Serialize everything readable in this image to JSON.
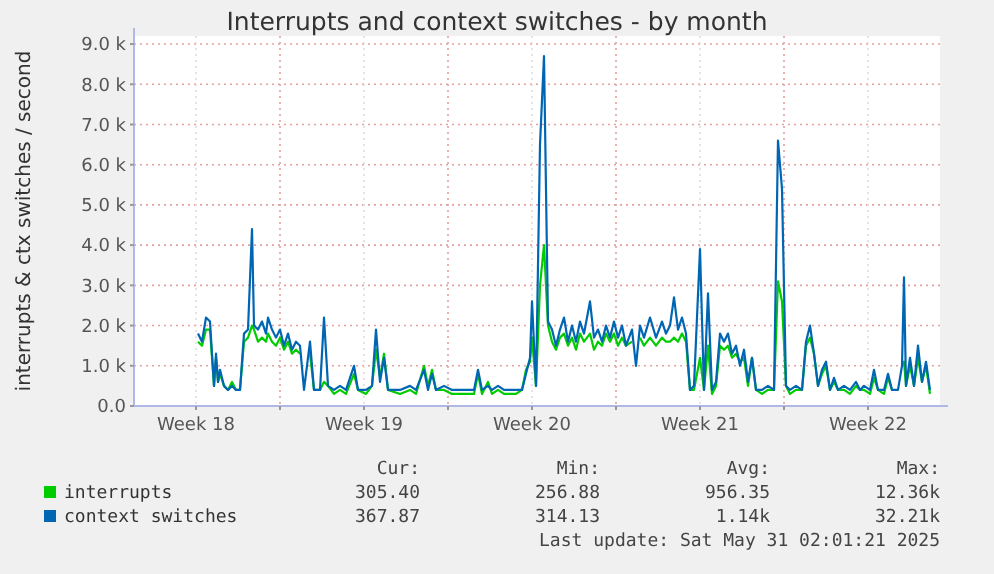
{
  "chart_data": {
    "type": "line",
    "title": "Interrupts and context switches - by month",
    "ylabel": "interrupts & ctx switches / second",
    "x": [
      "2025-04-30T14:00",
      "2025-04-30T18:00",
      "2025-04-30T22:00",
      "2025-05-01T02:00",
      "2025-05-01T06:00",
      "2025-05-01T08:00",
      "2025-05-01T10:00",
      "2025-05-01T12:00",
      "2025-05-01T16:00",
      "2025-05-01T20:00",
      "2025-05-02T00:00",
      "2025-05-02T04:00",
      "2025-05-02T08:00",
      "2025-05-02T12:00",
      "2025-05-02T16:00",
      "2025-05-02T20:00",
      "2025-05-02T22:00",
      "2025-05-03T02:00",
      "2025-05-03T06:00",
      "2025-05-03T10:00",
      "2025-05-03T12:00",
      "2025-05-03T16:00",
      "2025-05-03T20:00",
      "2025-05-04T00:00",
      "2025-05-04T04:00",
      "2025-05-04T08:00",
      "2025-05-04T12:00",
      "2025-05-04T16:00",
      "2025-05-04T20:00",
      "2025-05-05T00:00",
      "2025-05-05T06:00",
      "2025-05-05T10:00",
      "2025-05-05T16:00",
      "2025-05-05T20:00",
      "2025-05-06T00:00",
      "2025-05-06T06:00",
      "2025-05-06T12:00",
      "2025-05-06T18:00",
      "2025-05-07T02:00",
      "2025-05-07T06:00",
      "2025-05-07T14:00",
      "2025-05-07T20:00",
      "2025-05-08T00:00",
      "2025-05-08T04:00",
      "2025-05-08T08:00",
      "2025-05-08T12:00",
      "2025-05-09T00:00",
      "2025-05-09T10:00",
      "2025-05-09T16:00",
      "2025-05-10T00:00",
      "2025-05-10T04:00",
      "2025-05-10T08:00",
      "2025-05-10T12:00",
      "2025-05-10T20:00",
      "2025-05-11T04:00",
      "2025-05-11T16:00",
      "2025-05-12T02:00",
      "2025-05-12T06:00",
      "2025-05-12T10:00",
      "2025-05-12T16:00",
      "2025-05-12T20:00",
      "2025-05-13T02:00",
      "2025-05-13T08:00",
      "2025-05-13T20:00",
      "2025-05-14T02:00",
      "2025-05-14T06:00",
      "2025-05-14T10:00",
      "2025-05-14T12:00",
      "2025-05-14T16:00",
      "2025-05-14T20:00",
      "2025-05-15T00:00",
      "2025-05-15T04:00",
      "2025-05-15T08:00",
      "2025-05-15T12:00",
      "2025-05-15T16:00",
      "2025-05-15T20:00",
      "2025-05-16T00:00",
      "2025-05-16T04:00",
      "2025-05-16T08:00",
      "2025-05-16T12:00",
      "2025-05-16T16:00",
      "2025-05-16T22:00",
      "2025-05-17T02:00",
      "2025-05-17T06:00",
      "2025-05-17T10:00",
      "2025-05-17T14:00",
      "2025-05-17T18:00",
      "2025-05-17T22:00",
      "2025-05-18T02:00",
      "2025-05-18T06:00",
      "2025-05-18T10:00",
      "2025-05-18T16:00",
      "2025-05-18T20:00",
      "2025-05-19T00:00",
      "2025-05-19T04:00",
      "2025-05-19T10:00",
      "2025-05-19T16:00",
      "2025-05-19T22:00",
      "2025-05-20T02:00",
      "2025-05-20T06:00",
      "2025-05-20T10:00",
      "2025-05-20T14:00",
      "2025-05-20T18:00",
      "2025-05-20T22:00",
      "2025-05-21T02:00",
      "2025-05-21T06:00",
      "2025-05-21T12:00",
      "2025-05-21T16:00",
      "2025-05-21T20:00",
      "2025-05-22T00:00",
      "2025-05-22T04:00",
      "2025-05-22T08:00",
      "2025-05-22T12:00",
      "2025-05-22T16:00",
      "2025-05-22T20:00",
      "2025-05-23T00:00",
      "2025-05-23T04:00",
      "2025-05-23T08:00",
      "2025-05-23T12:00",
      "2025-05-23T16:00",
      "2025-05-23T20:00",
      "2025-05-24T02:00",
      "2025-05-24T08:00",
      "2025-05-24T14:00",
      "2025-05-24T18:00",
      "2025-05-24T22:00",
      "2025-05-25T02:00",
      "2025-05-25T06:00",
      "2025-05-25T12:00",
      "2025-05-25T18:00",
      "2025-05-25T22:00",
      "2025-05-26T02:00",
      "2025-05-26T06:00",
      "2025-05-26T10:00",
      "2025-05-26T14:00",
      "2025-05-26T18:00",
      "2025-05-26T22:00",
      "2025-05-27T02:00",
      "2025-05-27T06:00",
      "2025-05-27T12:00",
      "2025-05-27T18:00",
      "2025-05-28T00:00",
      "2025-05-28T04:00",
      "2025-05-28T08:00",
      "2025-05-28T14:00",
      "2025-05-28T18:00",
      "2025-05-28T22:00",
      "2025-05-29T04:00",
      "2025-05-29T08:00",
      "2025-05-29T12:00",
      "2025-05-29T18:00",
      "2025-05-29T22:00",
      "2025-05-30T00:00",
      "2025-05-30T02:00",
      "2025-05-30T06:00",
      "2025-05-30T10:00",
      "2025-05-30T14:00",
      "2025-05-30T18:00",
      "2025-05-30T22:00",
      "2025-05-31T02:00"
    ],
    "series": [
      {
        "name": "interrupts",
        "color": "#00cc00",
        "values": [
          1600,
          1500,
          1900,
          1900,
          500,
          1200,
          600,
          800,
          500,
          400,
          600,
          400,
          400,
          1600,
          1700,
          2000,
          1900,
          1600,
          1700,
          1600,
          1800,
          1600,
          1500,
          1700,
          1400,
          1600,
          1300,
          1400,
          1300,
          null,
          1300,
          400,
          400,
          600,
          500,
          300,
          400,
          300,
          800,
          400,
          300,
          500,
          1400,
          700,
          1300,
          400,
          300,
          400,
          300,
          1000,
          500,
          900,
          400,
          400,
          300,
          300,
          300,
          800,
          300,
          600,
          300,
          400,
          300,
          300,
          400,
          900,
          1100,
          1700,
          500,
          3000,
          4000,
          2000,
          1600,
          1400,
          1700,
          1800,
          1500,
          1700,
          1400,
          1800,
          1600,
          1800,
          1400,
          1600,
          1500,
          1800,
          1600,
          1800,
          1500,
          1700,
          1500,
          1600,
          null,
          1700,
          1500,
          1700,
          1500,
          1700,
          1600,
          1600,
          1700,
          1600,
          1800,
          1600,
          400,
          400,
          1200,
          400,
          1500,
          300,
          500,
          1500,
          1400,
          1500,
          1200,
          1300,
          1100,
          1200,
          500,
          1200,
          400,
          300,
          400,
          400,
          3100,
          2600,
          500,
          300,
          400,
          400,
          1500,
          1700,
          1300,
          500,
          800,
          1000,
          400,
          600,
          400,
          400,
          300,
          500,
          400,
          400,
          300,
          700,
          400,
          300,
          700,
          400,
          null,
          1000,
          1100,
          500,
          1000,
          500,
          1200,
          600,
          1000,
          300
        ]
      },
      {
        "name": "context switches",
        "color": "#0066b3",
        "values": [
          1800,
          1600,
          2200,
          2100,
          500,
          1300,
          600,
          900,
          500,
          400,
          500,
          400,
          400,
          1800,
          1900,
          4400,
          2000,
          1900,
          2100,
          1800,
          2200,
          1900,
          1700,
          1900,
          1500,
          1800,
          1400,
          1600,
          1500,
          400,
          1600,
          400,
          400,
          2200,
          500,
          400,
          500,
          400,
          1000,
          400,
          400,
          500,
          1900,
          600,
          1200,
          400,
          400,
          500,
          400,
          900,
          400,
          800,
          400,
          500,
          400,
          400,
          400,
          900,
          400,
          500,
          400,
          500,
          400,
          400,
          400,
          800,
          1200,
          2600,
          500,
          6500,
          8700,
          2100,
          1900,
          1500,
          1900,
          2200,
          1600,
          2000,
          1600,
          2100,
          1800,
          2600,
          1700,
          1900,
          1600,
          2000,
          1700,
          2100,
          1700,
          2000,
          1500,
          1900,
          1000,
          2000,
          1700,
          2200,
          1700,
          2100,
          1800,
          2000,
          2700,
          1900,
          2200,
          1800,
          400,
          500,
          3900,
          400,
          2800,
          400,
          600,
          1800,
          1600,
          1800,
          1300,
          1500,
          1000,
          1400,
          600,
          1200,
          400,
          400,
          500,
          400,
          6600,
          5400,
          500,
          400,
          500,
          400,
          1600,
          2000,
          1300,
          500,
          900,
          1100,
          400,
          700,
          400,
          500,
          400,
          600,
          400,
          500,
          400,
          900,
          400,
          400,
          800,
          400,
          400,
          1000,
          3200,
          500,
          1200,
          500,
          1500,
          600,
          1100,
          400
        ]
      }
    ],
    "xlim": [
      "2025-04-27T22:00",
      "2025-05-31T12:00"
    ],
    "xticks": [
      {
        "value": "2025-04-30T12:00",
        "label": "Week 18"
      },
      {
        "value": "2025-05-04",
        "label": null
      },
      {
        "value": "2025-05-07T12:00",
        "label": "Week 19"
      },
      {
        "value": "2025-05-11",
        "label": null
      },
      {
        "value": "2025-05-14T12:00",
        "label": "Week 20"
      },
      {
        "value": "2025-05-18",
        "label": null
      },
      {
        "value": "2025-05-21T12:00",
        "label": "Week 21"
      },
      {
        "value": "2025-05-25",
        "label": null
      },
      {
        "value": "2025-05-28T12:00",
        "label": "Week 22"
      }
    ],
    "ylim": [
      0,
      9200
    ],
    "yticks": [
      {
        "value": 0,
        "label": "0.0"
      },
      {
        "value": 1000,
        "label": "1.0 k"
      },
      {
        "value": 2000,
        "label": "2.0 k"
      },
      {
        "value": 3000,
        "label": "3.0 k"
      },
      {
        "value": 4000,
        "label": "4.0 k"
      },
      {
        "value": 5000,
        "label": "5.0 k"
      },
      {
        "value": 6000,
        "label": "6.0 k"
      },
      {
        "value": 7000,
        "label": "7.0 k"
      },
      {
        "value": 8000,
        "label": "8.0 k"
      },
      {
        "value": 9000,
        "label": "9.0 k"
      }
    ],
    "grid": true,
    "legend": "bottom",
    "marker": "none",
    "line_style": "solid",
    "annotations": [
      "Cur:",
      "Min:",
      "Avg:",
      "Max:",
      "305.40",
      "256.88",
      "956.35",
      "12.36k",
      "367.87",
      "314.13",
      "1.14k",
      "32.21k",
      "Last update: Sat May 31 02:01:21 2025"
    ]
  }
}
